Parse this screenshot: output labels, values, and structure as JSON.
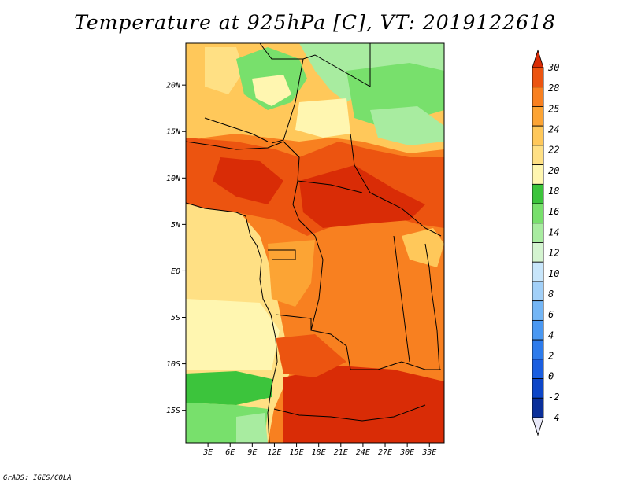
{
  "title": "Temperature at 925hPa [C], VT: 2019122618",
  "credit": "GrADS: IGES/COLA",
  "map": {
    "lat_labels": [
      "20N",
      "15N",
      "10N",
      "5N",
      "EQ",
      "5S",
      "10S",
      "15S"
    ],
    "lon_labels": [
      "3E",
      "6E",
      "9E",
      "12E",
      "15E",
      "18E",
      "21E",
      "24E",
      "27E",
      "30E",
      "33E"
    ],
    "lat_range": [
      -18.5,
      24.5
    ],
    "lon_range": [
      0,
      35
    ]
  },
  "colorbar": {
    "labels": [
      "30",
      "28",
      "25",
      "24",
      "22",
      "20",
      "18",
      "16",
      "14",
      "12",
      "10",
      "8",
      "6",
      "4",
      "2",
      "0",
      "-2",
      "-4"
    ],
    "colors": {
      "c0": "#e8e8f8",
      "c1": "#081866",
      "c2": "#0a2f9a",
      "c3": "#0d46c8",
      "c4": "#1a5ee0",
      "c5": "#2d7bec",
      "c6": "#4a98f2",
      "c7": "#74b6f6",
      "c8": "#a2d0f8",
      "c9": "#c8e6fb",
      "c10": "#d4f4d0",
      "c11": "#a8eca0",
      "c12": "#78e06c",
      "c13": "#3cc43c",
      "c14": "#fff6b0",
      "c15": "#ffe084",
      "c16": "#ffc85a",
      "c17": "#fca434",
      "c18": "#f88020",
      "c19": "#ec5410",
      "c20": "#d92c06"
    }
  },
  "legend_colors_top_to_bottom": [
    "c20",
    "c19",
    "c18",
    "c17",
    "c16",
    "c15",
    "c14",
    "c13",
    "c12",
    "c11",
    "c10",
    "c9",
    "c8",
    "c7",
    "c6",
    "c5",
    "c4",
    "c3",
    "c2",
    "c1"
  ]
}
